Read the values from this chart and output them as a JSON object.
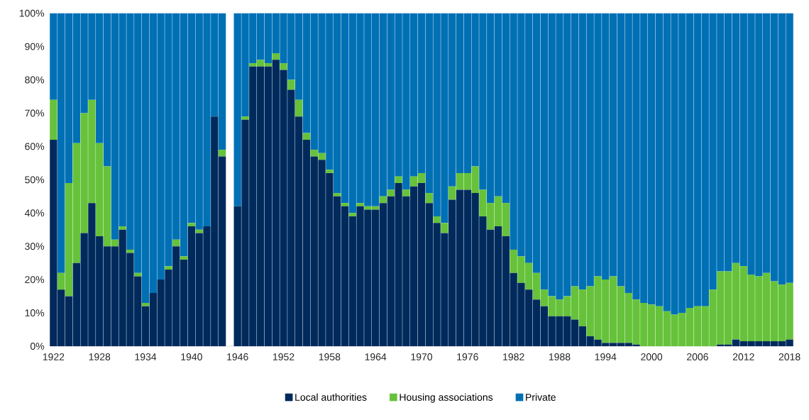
{
  "chart_data": {
    "type": "bar",
    "stacked": true,
    "legend": "bottom",
    "categories": [
      "1922",
      null,
      null,
      null,
      null,
      null,
      "1928",
      null,
      null,
      null,
      null,
      null,
      "1934",
      null,
      null,
      null,
      null,
      null,
      "1940",
      null,
      null,
      null,
      null,
      null,
      "1946",
      null,
      null,
      null,
      null,
      null,
      "1952",
      null,
      null,
      null,
      null,
      null,
      "1958",
      null,
      null,
      null,
      null,
      null,
      "1964",
      null,
      null,
      null,
      null,
      null,
      "1970",
      null,
      null,
      null,
      null,
      null,
      "1976",
      null,
      null,
      null,
      null,
      null,
      "1982",
      null,
      null,
      null,
      null,
      null,
      "1988",
      null,
      null,
      null,
      null,
      null,
      "1994",
      null,
      null,
      null,
      null,
      null,
      "2000",
      null,
      null,
      null,
      null,
      null,
      "2006",
      null,
      null,
      null,
      null,
      null,
      "2012",
      null,
      null,
      null,
      null,
      null,
      "2018"
    ],
    "series": [
      {
        "name": "Local authorities",
        "color": "#002a5c",
        "values": [
          62,
          17,
          15,
          25,
          34,
          43,
          33,
          30,
          30,
          35,
          28,
          21,
          12,
          16,
          20,
          23,
          30,
          26,
          36,
          34,
          36,
          69,
          57,
          null,
          42,
          68,
          84,
          84,
          84,
          86,
          83,
          77,
          69,
          62,
          57,
          56,
          52,
          45,
          42,
          39,
          42,
          41,
          41,
          43,
          45,
          49,
          45,
          48,
          49,
          43,
          37,
          34,
          44,
          47,
          47,
          46,
          39,
          35,
          36,
          33,
          22,
          19,
          17,
          14,
          12,
          9,
          9,
          9,
          8,
          6,
          3,
          2,
          1,
          1,
          1,
          1,
          0.5,
          0,
          0,
          0,
          0,
          0,
          0,
          0,
          0,
          0,
          0,
          0.5,
          0.5,
          2,
          1.5,
          1.5,
          1.5,
          1.5,
          1.5,
          1.5,
          2
        ]
      },
      {
        "name": "Housing associations",
        "color": "#66c23a",
        "values": [
          12,
          5,
          34,
          36,
          36,
          31,
          28,
          24,
          2,
          1,
          1,
          1,
          1,
          0,
          0,
          1,
          2,
          1,
          1,
          1,
          0,
          0,
          2,
          null,
          0,
          1,
          1,
          2,
          1,
          2,
          2,
          3,
          5,
          2,
          2,
          2,
          1,
          1,
          1,
          1,
          1,
          1,
          1,
          2,
          2,
          2,
          2,
          3,
          3,
          3,
          2,
          3,
          4,
          5,
          5,
          8,
          8,
          8,
          9,
          10,
          7,
          8,
          8,
          8,
          5,
          6,
          5,
          6,
          10,
          11,
          15,
          19,
          19,
          20,
          17,
          15,
          13.5,
          13,
          12.5,
          12,
          10.5,
          9.5,
          10,
          11.5,
          12,
          12,
          17,
          22,
          22,
          23,
          22.5,
          20,
          19.5,
          20.5,
          18,
          17,
          17
        ]
      },
      {
        "name": "Private",
        "color": "#0070b5",
        "values": [
          26,
          78,
          51,
          39,
          30,
          26,
          39,
          46,
          68,
          64,
          71,
          78,
          87,
          84,
          80,
          76,
          68,
          73,
          63,
          65,
          64,
          31,
          41,
          null,
          58,
          31,
          15,
          14,
          15,
          12,
          15,
          20,
          26,
          36,
          41,
          42,
          47,
          54,
          57,
          60,
          57,
          58,
          58,
          55,
          53,
          49,
          53,
          49,
          48,
          54,
          61,
          63,
          52,
          48,
          48,
          46,
          53,
          57,
          55,
          57,
          71,
          73,
          75,
          78,
          83,
          85,
          86,
          85,
          82,
          83,
          82,
          79,
          80,
          79,
          82,
          84,
          86,
          87,
          87.5,
          88,
          89.5,
          90.5,
          90,
          88.5,
          88,
          88,
          83,
          77.5,
          77.5,
          75,
          76,
          78.5,
          79,
          78,
          80.5,
          81.5,
          81
        ]
      }
    ],
    "ylim": [
      0,
      100
    ],
    "yticks": [
      {
        "value": 0,
        "label": "0%"
      },
      {
        "value": 10,
        "label": "10%"
      },
      {
        "value": 20,
        "label": "20%"
      },
      {
        "value": 30,
        "label": "30%"
      },
      {
        "value": 40,
        "label": "40%"
      },
      {
        "value": 50,
        "label": "50%"
      },
      {
        "value": 60,
        "label": "60%"
      },
      {
        "value": 70,
        "label": "70%"
      },
      {
        "value": 80,
        "label": "80%"
      },
      {
        "value": 90,
        "label": "90%"
      },
      {
        "value": 100,
        "label": "100%"
      }
    ]
  }
}
